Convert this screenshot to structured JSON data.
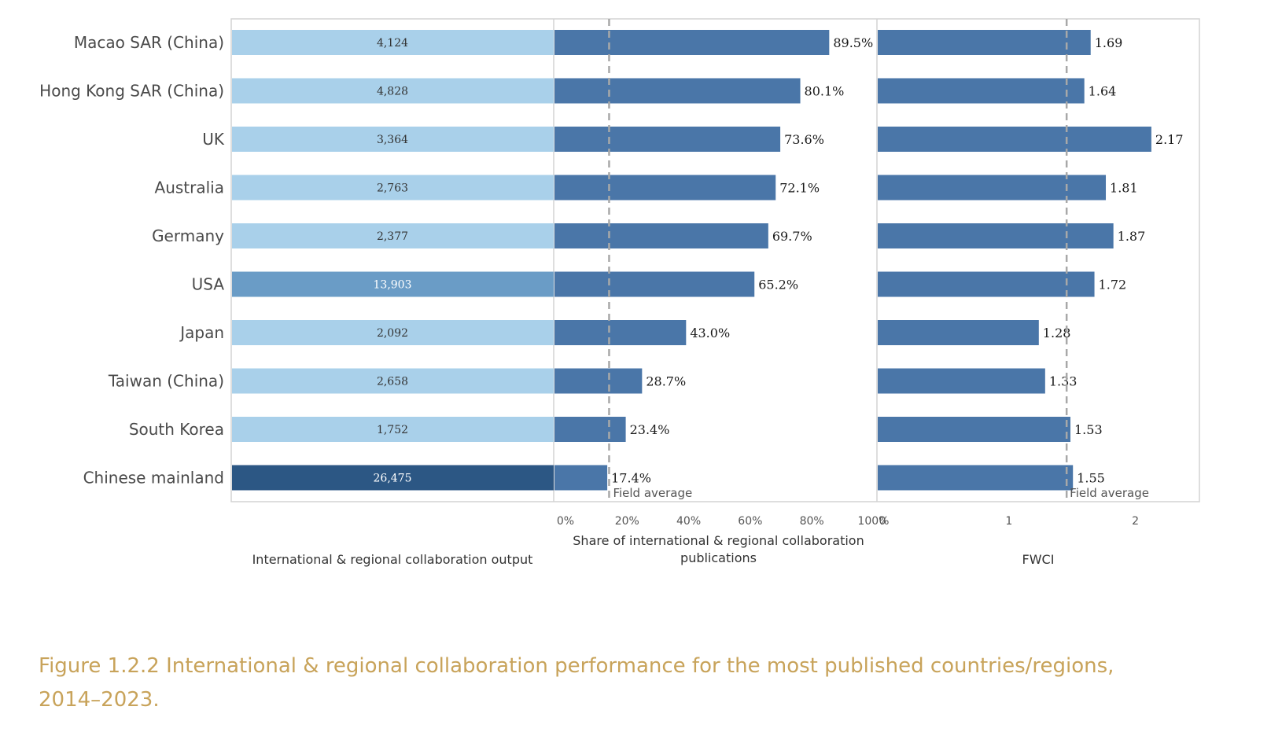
{
  "caption": "Figure 1.2.2 International & regional collaboration performance for the most published countries/regions, 2014–2023.",
  "colors": {
    "panel_border": "#d3d3d3",
    "bar_dark": "#4a76a8",
    "ref_line": "#a8a8a8",
    "output_light": "#a9d0ea",
    "output_mid": "#6a9cc6",
    "output_dark": "#2c5784",
    "text_dark": "#333333",
    "text_light": "#ffffff"
  },
  "chart_data": [
    {
      "type": "bar",
      "orientation": "horizontal",
      "xlabel": "International & regional collaboration output",
      "categories": [
        "Macao SAR (China)",
        "Hong Kong SAR (China)",
        "UK",
        "Australia",
        "Germany",
        "USA",
        "Japan",
        "Taiwan (China)",
        "South Korea",
        "Chinese mainland"
      ],
      "labels": [
        "4,124",
        "4,828",
        "3,364",
        "2,763",
        "2,377",
        "13,903",
        "2,092",
        "2,658",
        "1,752",
        "26,475"
      ],
      "values": [
        4124,
        4828,
        3364,
        2763,
        2377,
        13903,
        2092,
        2658,
        1752,
        26475
      ]
    },
    {
      "type": "bar",
      "orientation": "horizontal",
      "xlabel": "Share of international & regional collaboration publications",
      "values": [
        89.5,
        80.1,
        73.6,
        72.1,
        69.7,
        65.2,
        43.0,
        28.7,
        23.4,
        17.4
      ],
      "labels": [
        "89.5%",
        "80.1%",
        "73.6%",
        "72.1%",
        "69.7%",
        "65.2%",
        "43.0%",
        "28.7%",
        "23.4%",
        "17.4%"
      ],
      "xlim": [
        0,
        105
      ],
      "ticks": [
        0,
        20,
        40,
        60,
        80,
        100
      ],
      "tick_labels": [
        "0%",
        "20%",
        "40%",
        "60%",
        "80%",
        "100%"
      ],
      "reference": {
        "label": "Field average",
        "value": 18
      }
    },
    {
      "type": "bar",
      "orientation": "horizontal",
      "xlabel": "FWCI",
      "values": [
        1.69,
        1.64,
        2.17,
        1.81,
        1.87,
        1.72,
        1.28,
        1.33,
        1.53,
        1.55
      ],
      "labels": [
        "1.69",
        "1.64",
        "2.17",
        "1.81",
        "1.87",
        "1.72",
        "1.28",
        "1.33",
        "1.53",
        "1.55"
      ],
      "xlim": [
        0,
        2.55
      ],
      "ticks": [
        0,
        1,
        2
      ],
      "tick_labels": [
        "0",
        "1",
        "2"
      ],
      "reference": {
        "label": "Field average",
        "value": 1.5
      }
    }
  ]
}
